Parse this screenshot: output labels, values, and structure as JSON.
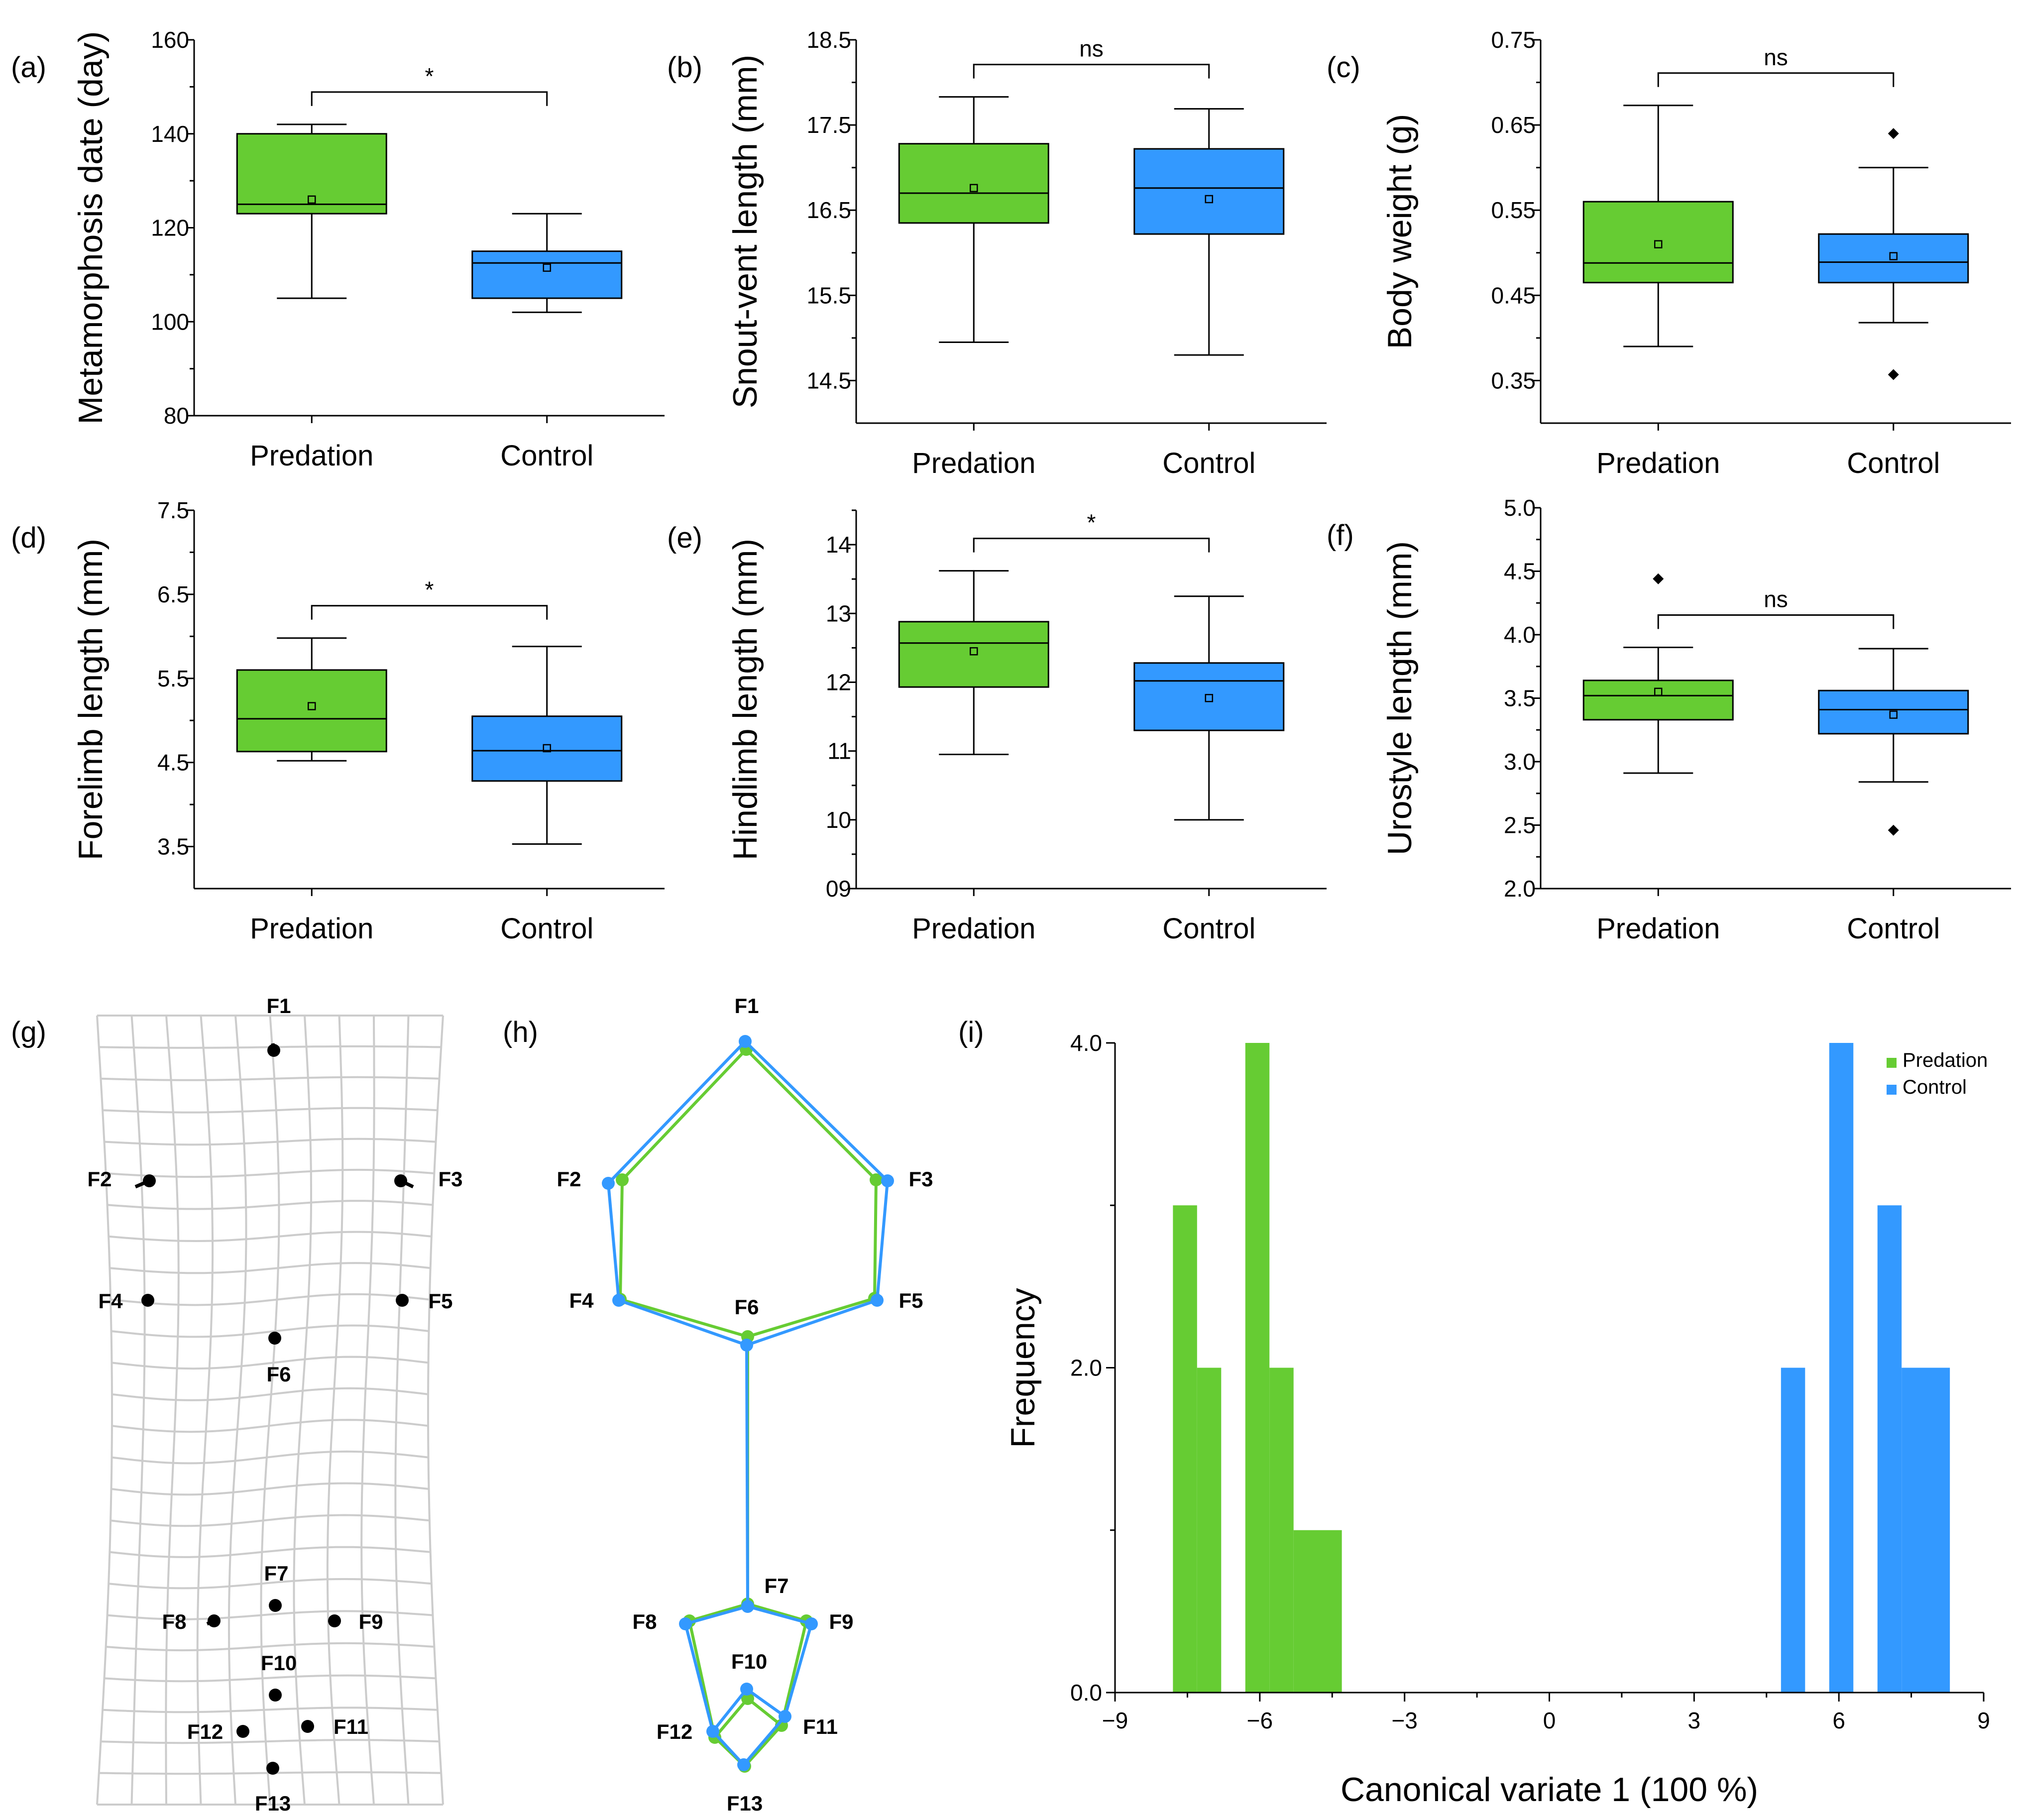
{
  "colors": {
    "predation": "#66cc33",
    "control": "#3399ff",
    "grid": "#cccccc"
  },
  "chart_data": [
    {
      "type": "box",
      "panel": "(a)",
      "ylabel": "Metamorphosis date (day)",
      "categories": [
        "Predation",
        "Control"
      ],
      "yticks": [
        "80",
        "100",
        "120",
        "140",
        "160"
      ],
      "ylim": [
        80,
        160
      ],
      "significance": "*",
      "boxes": [
        {
          "group": "Predation",
          "min": 105,
          "q1": 123,
          "median": 125,
          "q3": 140,
          "max": 142,
          "mean": 126,
          "outliers": []
        },
        {
          "group": "Control",
          "min": 102,
          "q1": 105,
          "median": 112.5,
          "q3": 115,
          "max": 123,
          "mean": 111.5,
          "outliers": []
        }
      ]
    },
    {
      "type": "box",
      "panel": "(b)",
      "ylabel": "Snout-vent length (mm)",
      "categories": [
        "Predation",
        "Control"
      ],
      "yticks": [
        "14.5",
        "15.5",
        "16.5",
        "17.5",
        "18.5"
      ],
      "ylim": [
        14,
        18.5
      ],
      "significance": "ns",
      "boxes": [
        {
          "group": "Predation",
          "min": 14.95,
          "q1": 16.35,
          "median": 16.7,
          "q3": 17.28,
          "max": 17.83,
          "mean": 16.76,
          "outliers": []
        },
        {
          "group": "Control",
          "min": 14.8,
          "q1": 16.22,
          "median": 16.76,
          "q3": 17.22,
          "max": 17.69,
          "mean": 16.63,
          "outliers": []
        }
      ]
    },
    {
      "type": "box",
      "panel": "(c)",
      "ylabel": "Body weight (g)",
      "categories": [
        "Predation",
        "Control"
      ],
      "yticks": [
        "0.35",
        "0.45",
        "0.55",
        "0.65",
        "0.75"
      ],
      "ylim": [
        0.3,
        0.75
      ],
      "significance": "ns",
      "boxes": [
        {
          "group": "Predation",
          "min": 0.39,
          "q1": 0.465,
          "median": 0.488,
          "q3": 0.56,
          "max": 0.673,
          "mean": 0.51,
          "outliers": []
        },
        {
          "group": "Control",
          "min": 0.418,
          "q1": 0.465,
          "median": 0.489,
          "q3": 0.522,
          "max": 0.6,
          "mean": 0.496,
          "outliers": [
            0.64,
            0.357
          ]
        }
      ]
    },
    {
      "type": "box",
      "panel": "(d)",
      "ylabel": "Forelimb length (mm)",
      "categories": [
        "Predation",
        "Control"
      ],
      "yticks": [
        "3.5",
        "4.5",
        "5.5",
        "6.5",
        "7.5"
      ],
      "ylim": [
        3,
        7.5
      ],
      "significance": "*",
      "boxes": [
        {
          "group": "Predation",
          "min": 4.52,
          "q1": 4.63,
          "median": 5.02,
          "q3": 5.6,
          "max": 5.98,
          "mean": 5.17,
          "outliers": []
        },
        {
          "group": "Control",
          "min": 3.53,
          "q1": 4.28,
          "median": 4.64,
          "q3": 5.05,
          "max": 5.88,
          "mean": 4.67,
          "outliers": []
        }
      ]
    },
    {
      "type": "box",
      "panel": "(e)",
      "ylabel": "Hindlimb length (mm)",
      "categories": [
        "Predation",
        "Control"
      ],
      "yticks": [
        "09",
        "10",
        "11",
        "12",
        "13",
        "14"
      ],
      "ylim": [
        9,
        14.5
      ],
      "significance": "*",
      "boxes": [
        {
          "group": "Predation",
          "min": 10.95,
          "q1": 11.93,
          "median": 12.57,
          "q3": 12.88,
          "max": 13.62,
          "mean": 12.45,
          "outliers": []
        },
        {
          "group": "Control",
          "min": 10.0,
          "q1": 11.3,
          "median": 12.02,
          "q3": 12.28,
          "max": 13.25,
          "mean": 11.77,
          "outliers": []
        }
      ]
    },
    {
      "type": "box",
      "panel": "(f)",
      "ylabel": "Urostyle length (mm)",
      "categories": [
        "Predation",
        "Control"
      ],
      "yticks": [
        "2.0",
        "2.5",
        "3.0",
        "3.5",
        "4.0",
        "4.5",
        "5.0"
      ],
      "ylim": [
        2.0,
        5.0
      ],
      "significance": "ns",
      "boxes": [
        {
          "group": "Predation",
          "min": 2.91,
          "q1": 3.33,
          "median": 3.52,
          "q3": 3.64,
          "max": 3.9,
          "mean": 3.55,
          "outliers": [
            4.44
          ]
        },
        {
          "group": "Control",
          "min": 2.84,
          "q1": 3.22,
          "median": 3.41,
          "q3": 3.56,
          "max": 3.89,
          "mean": 3.37,
          "outliers": [
            2.46
          ]
        }
      ]
    },
    {
      "type": "histogram",
      "panel": "(i)",
      "xlabel": "Canonical variate 1 (100 %)",
      "ylabel": "Frequency",
      "xlim": [
        -9,
        9
      ],
      "ylim": [
        0,
        4
      ],
      "xticks": [
        "−9",
        "−6",
        "−3",
        "0",
        "3",
        "6",
        "9"
      ],
      "yticks": [
        "0.0",
        "2.0",
        "4.0"
      ],
      "legend": [
        "Predation",
        "Control"
      ],
      "series": [
        {
          "name": "Predation",
          "bins": [
            {
              "x0": -7.8,
              "x1": -7.3,
              "count": 3
            },
            {
              "x0": -7.3,
              "x1": -6.8,
              "count": 2
            },
            {
              "x0": -6.3,
              "x1": -5.8,
              "count": 4
            },
            {
              "x0": -5.8,
              "x1": -5.3,
              "count": 2
            },
            {
              "x0": -5.3,
              "x1": -4.3,
              "count": 1
            }
          ]
        },
        {
          "name": "Control",
          "bins": [
            {
              "x0": 4.8,
              "x1": 5.3,
              "count": 2
            },
            {
              "x0": 5.8,
              "x1": 6.3,
              "count": 4
            },
            {
              "x0": 6.8,
              "x1": 7.3,
              "count": 3
            },
            {
              "x0": 7.3,
              "x1": 8.3,
              "count": 2
            }
          ]
        }
      ]
    }
  ],
  "landmarks": {
    "panel_g": "(g)",
    "panel_h": "(h)",
    "labels": [
      "F1",
      "F2",
      "F3",
      "F4",
      "F5",
      "F6",
      "F7",
      "F8",
      "F9",
      "F10",
      "F11",
      "F12",
      "F13"
    ]
  }
}
